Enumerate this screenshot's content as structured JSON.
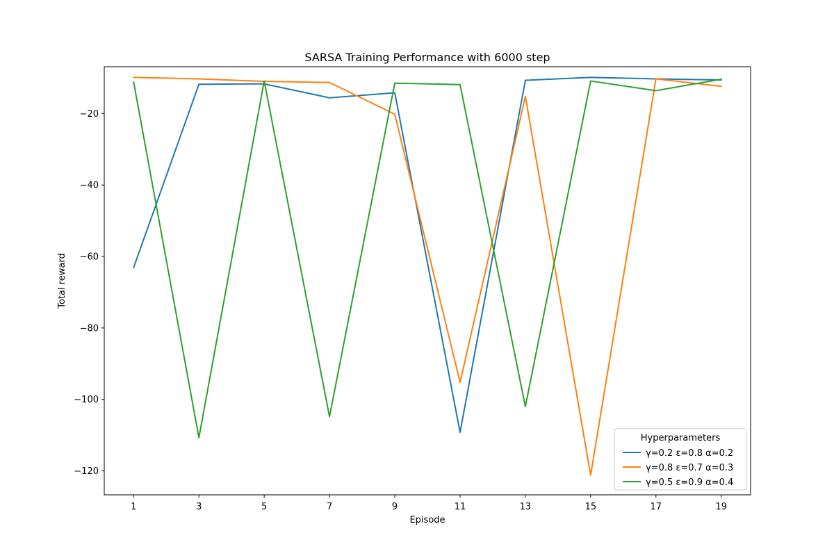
{
  "chart_data": {
    "type": "line",
    "title": "SARSA Training Performance with 6000 step",
    "xlabel": "Episode",
    "ylabel": "Total reward",
    "x": [
      1,
      3,
      5,
      7,
      9,
      11,
      13,
      15,
      17,
      19
    ],
    "xticks": [
      "1",
      "3",
      "5",
      "7",
      "9",
      "11",
      "13",
      "15",
      "17",
      "19"
    ],
    "yticks": [
      "−120",
      "−100",
      "−80",
      "−60",
      "−40",
      "−20"
    ],
    "ytick_values": [
      -120,
      -100,
      -80,
      -60,
      -40,
      -20
    ],
    "xlim": [
      0.1,
      19.9
    ],
    "ylim": [
      -126.7,
      -6.9
    ],
    "grid": false,
    "legend": {
      "title": "Hyperparameters",
      "placement": "lower-right"
    },
    "series": [
      {
        "name": "γ=0.2 ε=0.8 α=0.2",
        "color": "#1f77b4",
        "values": [
          -63.1,
          -11.8,
          -11.7,
          -15.6,
          -14.2,
          -109.2,
          -10.7,
          -9.9,
          -10.3,
          -10.6
        ]
      },
      {
        "name": "γ=0.8 ε=0.7 α=0.3",
        "color": "#ff7f0e",
        "values": [
          -9.9,
          -10.3,
          -11.0,
          -11.3,
          -20.2,
          -95.2,
          -15.2,
          -121.2,
          -10.3,
          -12.4
        ]
      },
      {
        "name": "γ=0.5 ε=0.9 α=0.4",
        "color": "#2ca02c",
        "values": [
          -11.2,
          -110.7,
          -10.9,
          -104.8,
          -11.5,
          -11.9,
          -102.0,
          -10.9,
          -13.6,
          -10.4
        ]
      }
    ]
  }
}
